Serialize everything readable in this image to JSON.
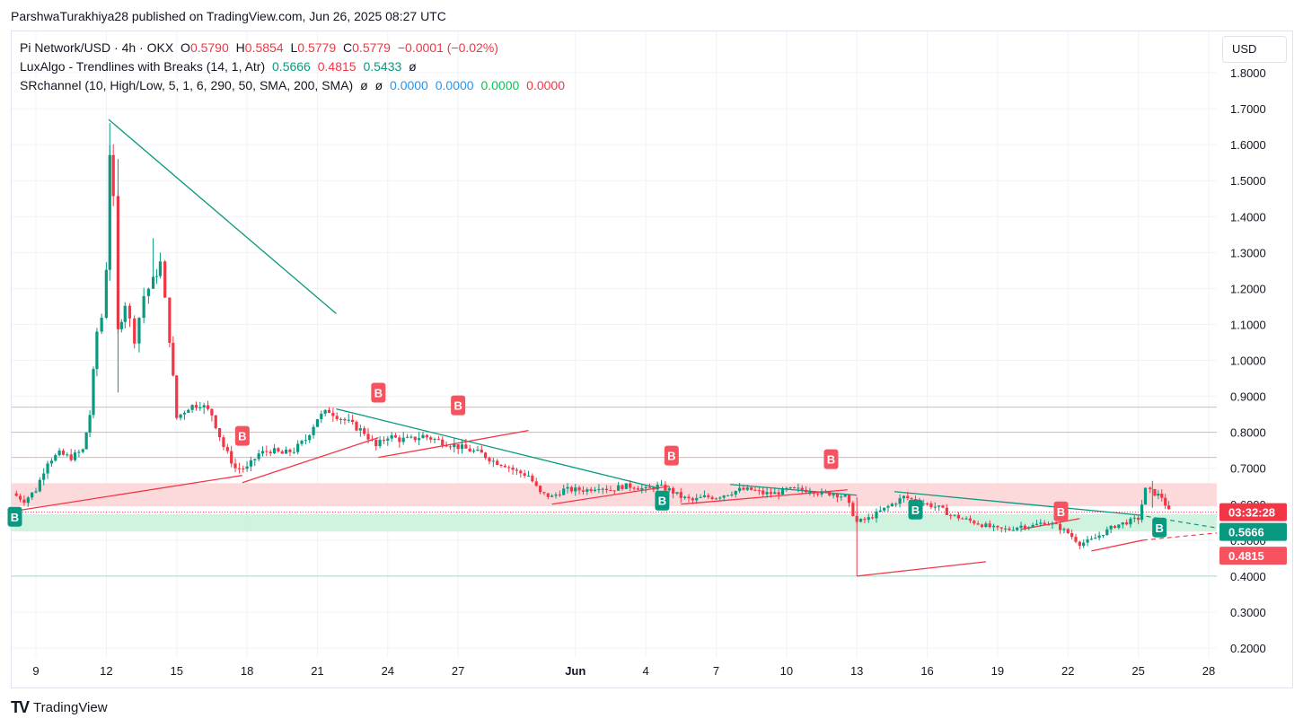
{
  "header": {
    "published": "ParshwaTurakhiya28 published on TradingView.com, Jun 26, 2025 08:27 UTC"
  },
  "legend": {
    "symbol": "Pi Network/USD · 4h · OKX",
    "open_label": "O",
    "open": "0.5790",
    "high_label": "H",
    "high": "0.5854",
    "low_label": "L",
    "low": "0.5779",
    "close_label": "C",
    "close": "0.5779",
    "change": "−0.0001 (−0.02%)",
    "luxalgo_name": "LuxAlgo - Trendlines with Breaks (14, 1, Atr)",
    "luxalgo_v1": "0.5666",
    "luxalgo_v2": "0.4815",
    "luxalgo_v3": "0.5433",
    "luxalgo_v4": "ø",
    "sr_name": "SRchannel (10, High/Low, 5, 1, 6, 290, 50, SMA, 200, SMA)",
    "sr_v1": "ø",
    "sr_v2": "ø",
    "sr_v3": "0.0000",
    "sr_v4": "0.0000",
    "sr_v5": "0.0000",
    "sr_v6": "0.0000"
  },
  "currency": "USD",
  "footer": {
    "logo": "TV",
    "brand": "TradingView"
  },
  "colors": {
    "up": "#089981",
    "down": "#f23645",
    "grid": "#f0f3fa",
    "resistance_zone": "#fbd3d6",
    "support_zone": "#c8f1da"
  },
  "chart_data": {
    "type": "candlestick",
    "title": "Pi Network/USD · 4h · OKX",
    "xlabel": "",
    "ylabel": "",
    "ylim": [
      0.17,
      1.9
    ],
    "y_ticks": [
      "0.2000",
      "0.3000",
      "0.4000",
      "0.5000",
      "0.6000",
      "0.7000",
      "0.8000",
      "0.9000",
      "1.0000",
      "1.1000",
      "1.2000",
      "1.3000",
      "1.4000",
      "1.5000",
      "1.6000",
      "1.7000",
      "1.8000"
    ],
    "x_ticks": [
      {
        "label": "9",
        "day": 9
      },
      {
        "label": "12",
        "day": 12
      },
      {
        "label": "15",
        "day": 15
      },
      {
        "label": "18",
        "day": 18
      },
      {
        "label": "21",
        "day": 21
      },
      {
        "label": "24",
        "day": 24
      },
      {
        "label": "27",
        "day": 27
      },
      {
        "label": "Jun",
        "day": 32
      },
      {
        "label": "4",
        "day": 35
      },
      {
        "label": "7",
        "day": 38
      },
      {
        "label": "10",
        "day": 41
      },
      {
        "label": "13",
        "day": 44
      },
      {
        "label": "16",
        "day": 47
      },
      {
        "label": "19",
        "day": 50
      },
      {
        "label": "22",
        "day": 53
      },
      {
        "label": "25",
        "day": 56
      },
      {
        "label": "28",
        "day": 59
      }
    ],
    "x_range_days": [
      8.0,
      60.0
    ],
    "price_path": [
      [
        8.0,
        0.63
      ],
      [
        8.5,
        0.61
      ],
      [
        9.0,
        0.64
      ],
      [
        9.5,
        0.72
      ],
      [
        10.0,
        0.74
      ],
      [
        10.5,
        0.73
      ],
      [
        11.0,
        0.75
      ],
      [
        11.3,
        0.85
      ],
      [
        11.6,
        1.08
      ],
      [
        11.8,
        1.12
      ],
      [
        12.0,
        1.26
      ],
      [
        12.15,
        1.58
      ],
      [
        12.3,
        1.44
      ],
      [
        12.5,
        1.08
      ],
      [
        12.8,
        1.16
      ],
      [
        13.2,
        1.06
      ],
      [
        13.6,
        1.18
      ],
      [
        14.0,
        1.22
      ],
      [
        14.3,
        1.27
      ],
      [
        14.7,
        1.06
      ],
      [
        15.0,
        0.84
      ],
      [
        15.5,
        0.87
      ],
      [
        16.0,
        0.88
      ],
      [
        16.5,
        0.85
      ],
      [
        17.0,
        0.76
      ],
      [
        17.5,
        0.7
      ],
      [
        18.0,
        0.7
      ],
      [
        18.5,
        0.74
      ],
      [
        19.0,
        0.75
      ],
      [
        19.5,
        0.74
      ],
      [
        20.0,
        0.75
      ],
      [
        20.5,
        0.78
      ],
      [
        21.0,
        0.84
      ],
      [
        21.5,
        0.86
      ],
      [
        22.0,
        0.84
      ],
      [
        22.5,
        0.82
      ],
      [
        23.0,
        0.8
      ],
      [
        23.5,
        0.76
      ],
      [
        24.0,
        0.79
      ],
      [
        24.5,
        0.78
      ],
      [
        25.0,
        0.78
      ],
      [
        25.5,
        0.79
      ],
      [
        26.0,
        0.78
      ],
      [
        26.5,
        0.77
      ],
      [
        27.0,
        0.76
      ],
      [
        27.5,
        0.75
      ],
      [
        28.0,
        0.74
      ],
      [
        28.5,
        0.72
      ],
      [
        29.0,
        0.71
      ],
      [
        29.5,
        0.69
      ],
      [
        30.0,
        0.68
      ],
      [
        30.5,
        0.63
      ],
      [
        31.0,
        0.62
      ],
      [
        31.5,
        0.64
      ],
      [
        32.0,
        0.64
      ],
      [
        32.5,
        0.64
      ],
      [
        33.0,
        0.65
      ],
      [
        33.5,
        0.64
      ],
      [
        34.0,
        0.65
      ],
      [
        34.5,
        0.65
      ],
      [
        35.0,
        0.64
      ],
      [
        35.5,
        0.65
      ],
      [
        36.0,
        0.64
      ],
      [
        36.5,
        0.62
      ],
      [
        37.0,
        0.61
      ],
      [
        37.5,
        0.62
      ],
      [
        38.0,
        0.62
      ],
      [
        38.5,
        0.63
      ],
      [
        39.0,
        0.64
      ],
      [
        39.5,
        0.64
      ],
      [
        40.0,
        0.63
      ],
      [
        40.5,
        0.63
      ],
      [
        41.0,
        0.64
      ],
      [
        41.5,
        0.64
      ],
      [
        42.0,
        0.64
      ],
      [
        42.5,
        0.63
      ],
      [
        43.0,
        0.63
      ],
      [
        43.5,
        0.62
      ],
      [
        44.0,
        0.55
      ],
      [
        44.5,
        0.56
      ],
      [
        45.0,
        0.58
      ],
      [
        45.5,
        0.6
      ],
      [
        46.0,
        0.62
      ],
      [
        46.5,
        0.61
      ],
      [
        47.0,
        0.6
      ],
      [
        47.5,
        0.59
      ],
      [
        48.0,
        0.57
      ],
      [
        48.5,
        0.56
      ],
      [
        49.0,
        0.55
      ],
      [
        49.5,
        0.54
      ],
      [
        50.0,
        0.53
      ],
      [
        50.5,
        0.53
      ],
      [
        51.0,
        0.54
      ],
      [
        51.5,
        0.54
      ],
      [
        52.0,
        0.55
      ],
      [
        52.5,
        0.54
      ],
      [
        53.0,
        0.52
      ],
      [
        53.5,
        0.49
      ],
      [
        54.0,
        0.5
      ],
      [
        54.5,
        0.52
      ],
      [
        55.0,
        0.54
      ],
      [
        55.5,
        0.55
      ],
      [
        56.0,
        0.56
      ],
      [
        56.3,
        0.64
      ],
      [
        56.7,
        0.63
      ],
      [
        57.0,
        0.62
      ],
      [
        57.3,
        0.58
      ]
    ],
    "horizontal_lines": [
      {
        "price": 0.87,
        "color": "#f7a9b0"
      },
      {
        "price": 0.8,
        "color": "#f7a9b0"
      },
      {
        "price": 0.73,
        "color": "#f7a9b0"
      },
      {
        "price": 0.4,
        "color": "#8fe3bb"
      }
    ],
    "zones": [
      {
        "from": 0.594,
        "to": 0.6585,
        "color": "resistance"
      },
      {
        "from": 0.524,
        "to": 0.572,
        "color": "support"
      }
    ],
    "trendlines_down": [
      [
        [
          12.1,
          1.67
        ],
        [
          21.8,
          1.13
        ]
      ],
      [
        [
          21.8,
          0.865
        ],
        [
          35.5,
          0.645
        ]
      ],
      [
        [
          38.6,
          0.655
        ],
        [
          44.0,
          0.625
        ]
      ],
      [
        [
          45.6,
          0.635
        ],
        [
          56.0,
          0.57
        ]
      ]
    ],
    "trendlines_up": [
      [
        [
          8.0,
          0.58
        ],
        [
          17.8,
          0.68
        ]
      ],
      [
        [
          17.8,
          0.66
        ],
        [
          23.6,
          0.785
        ]
      ],
      [
        [
          23.6,
          0.73
        ],
        [
          30.0,
          0.805
        ]
      ],
      [
        [
          31.0,
          0.6
        ],
        [
          36.0,
          0.65
        ]
      ],
      [
        [
          36.5,
          0.6
        ],
        [
          43.6,
          0.64
        ]
      ],
      [
        [
          44.0,
          0.4
        ],
        [
          49.5,
          0.44
        ]
      ],
      [
        [
          51.0,
          0.53
        ],
        [
          53.5,
          0.56
        ]
      ],
      [
        [
          54.0,
          0.47
        ],
        [
          56.2,
          0.5
        ]
      ]
    ],
    "dashed_projections": [
      {
        "from": [
          56.0,
          0.57
        ],
        "to": [
          60.0,
          0.534
        ],
        "color": "#089981"
      },
      {
        "from": [
          56.2,
          0.5
        ],
        "to": [
          60.0,
          0.52
        ],
        "color": "#f23645"
      }
    ],
    "break_markers": [
      {
        "day": 8.1,
        "price": 0.565,
        "label": "B",
        "kind": "up"
      },
      {
        "day": 17.8,
        "price": 0.79,
        "label": "B",
        "kind": "down"
      },
      {
        "day": 23.6,
        "price": 0.91,
        "label": "B",
        "kind": "down"
      },
      {
        "day": 27.0,
        "price": 0.875,
        "label": "B",
        "kind": "down"
      },
      {
        "day": 35.7,
        "price": 0.61,
        "label": "B",
        "kind": "up"
      },
      {
        "day": 36.1,
        "price": 0.735,
        "label": "B",
        "kind": "down"
      },
      {
        "day": 42.9,
        "price": 0.725,
        "label": "B",
        "kind": "down"
      },
      {
        "day": 46.5,
        "price": 0.585,
        "label": "B",
        "kind": "up"
      },
      {
        "day": 52.7,
        "price": 0.58,
        "label": "B",
        "kind": "down"
      },
      {
        "day": 56.9,
        "price": 0.535,
        "label": "B",
        "kind": "up"
      }
    ],
    "price_labels": [
      {
        "text": "03:32:28",
        "price": 0.5779,
        "bg": "#f23645",
        "color": "#ffffff"
      },
      {
        "text": "0.5666",
        "price": 0.5666,
        "bg": "#089981",
        "color": "#ffffff"
      },
      {
        "text": "0.4815",
        "price": 0.4815,
        "bg": "#f7525f",
        "color": "#ffffff"
      }
    ],
    "current_price": 0.5779
  }
}
